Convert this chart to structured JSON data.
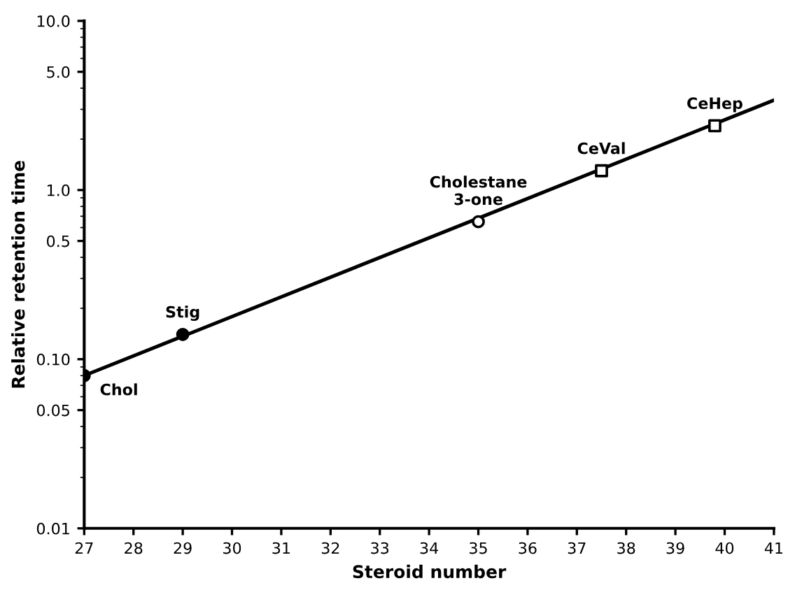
{
  "chart_data": {
    "type": "scatter",
    "xlabel": "Steroid number",
    "ylabel": "Relative retention time",
    "log": "y",
    "xlim": [
      27,
      41
    ],
    "xticks": [
      27,
      28,
      29,
      30,
      31,
      32,
      33,
      34,
      35,
      36,
      37,
      38,
      39,
      40,
      41
    ],
    "ylim": [
      0.01,
      10
    ],
    "yticks": [
      {
        "value": 0.01,
        "label": "0.01"
      },
      {
        "value": 0.05,
        "label": "0.05"
      },
      {
        "value": 0.1,
        "label": "0.10"
      },
      {
        "value": 0.5,
        "label": "0.5"
      },
      {
        "value": 1,
        "label": "1.0"
      },
      {
        "value": 5,
        "label": "5.0"
      },
      {
        "value": 10,
        "label": "10.0"
      }
    ],
    "grid": false,
    "series": [
      {
        "type": "line",
        "color": "#000000",
        "x": [
          27,
          41
        ],
        "values": [
          0.08,
          3.4
        ],
        "marker": "none",
        "line_style": "solid"
      },
      {
        "color": "#000000",
        "x": [
          27,
          29
        ],
        "values": [
          0.08,
          0.14
        ],
        "marker": "circle"
      },
      {
        "color": "#ffffff",
        "x": [
          35
        ],
        "values": [
          0.65
        ],
        "marker": "circle"
      },
      {
        "color": "#ffffff",
        "x": [
          37.5,
          39.8
        ],
        "values": [
          1.3,
          2.4
        ],
        "marker": "square"
      }
    ],
    "annotations": [
      {
        "text": "Chol",
        "x": 27,
        "y": 0.08
      },
      {
        "text": "Stig",
        "x": 29,
        "y": 0.14
      },
      {
        "text": "Cholestane\n3-one",
        "x": 35,
        "y": 0.65
      },
      {
        "text": "CeVal",
        "x": 37.5,
        "y": 1.3
      },
      {
        "text": "CeHep",
        "x": 39.8,
        "y": 2.4
      }
    ]
  }
}
